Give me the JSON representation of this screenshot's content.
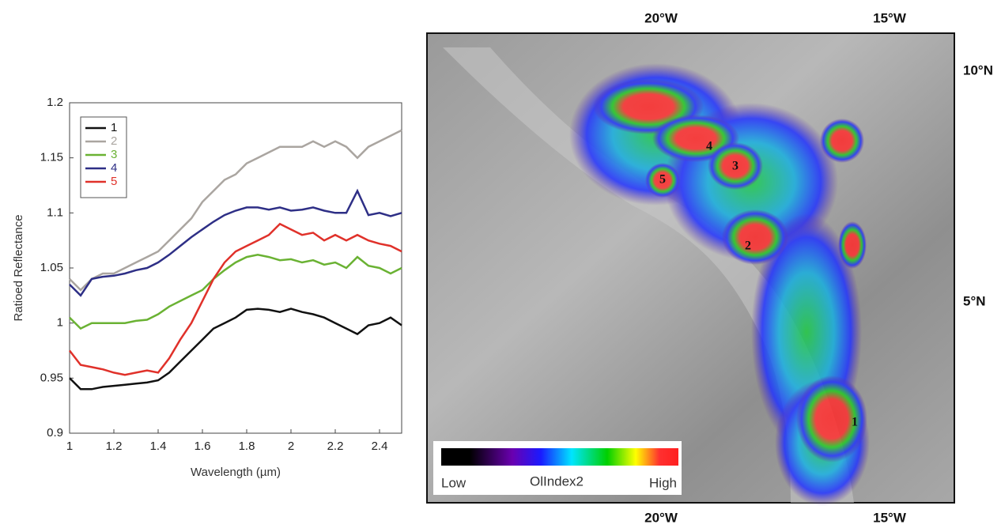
{
  "chart_data": {
    "type": "line",
    "xlabel": "Wavelength (µm)",
    "ylabel": "Ratioed Reflectance",
    "x": [
      1.0,
      1.05,
      1.1,
      1.15,
      1.2,
      1.25,
      1.3,
      1.35,
      1.4,
      1.45,
      1.5,
      1.55,
      1.6,
      1.65,
      1.7,
      1.75,
      1.8,
      1.85,
      1.9,
      1.95,
      2.0,
      2.05,
      2.1,
      2.15,
      2.2,
      2.25,
      2.3,
      2.35,
      2.4,
      2.45,
      2.5
    ],
    "xlim": [
      1,
      2.5
    ],
    "xticks": [
      1,
      1.2,
      1.4,
      1.6,
      1.8,
      2,
      2.2,
      2.4
    ],
    "ylim": [
      0.9,
      1.2
    ],
    "yticks": [
      0.9,
      0.95,
      1,
      1.05,
      1.1,
      1.15,
      1.2
    ],
    "legend": "upper left",
    "series": [
      {
        "name": "1",
        "color": "#111111",
        "values": [
          0.95,
          0.94,
          0.94,
          0.942,
          0.943,
          0.944,
          0.945,
          0.946,
          0.948,
          0.955,
          0.965,
          0.975,
          0.985,
          0.995,
          1.0,
          1.005,
          1.012,
          1.013,
          1.012,
          1.01,
          1.013,
          1.01,
          1.008,
          1.005,
          1.0,
          0.995,
          0.99,
          0.998,
          1.0,
          1.005,
          0.998
        ]
      },
      {
        "name": "2",
        "color": "#aaa5a0",
        "values": [
          1.04,
          1.03,
          1.04,
          1.045,
          1.045,
          1.05,
          1.055,
          1.06,
          1.065,
          1.075,
          1.085,
          1.095,
          1.11,
          1.12,
          1.13,
          1.135,
          1.145,
          1.15,
          1.155,
          1.16,
          1.16,
          1.16,
          1.165,
          1.16,
          1.165,
          1.16,
          1.15,
          1.16,
          1.165,
          1.17,
          1.175
        ]
      },
      {
        "name": "3",
        "color": "#6ab233",
        "values": [
          1.005,
          0.995,
          1.0,
          1.0,
          1.0,
          1.0,
          1.002,
          1.003,
          1.008,
          1.015,
          1.02,
          1.025,
          1.03,
          1.04,
          1.048,
          1.055,
          1.06,
          1.062,
          1.06,
          1.057,
          1.058,
          1.055,
          1.057,
          1.053,
          1.055,
          1.05,
          1.06,
          1.052,
          1.05,
          1.045,
          1.05
        ]
      },
      {
        "name": "4",
        "color": "#2e2f86",
        "values": [
          1.035,
          1.025,
          1.04,
          1.042,
          1.043,
          1.045,
          1.048,
          1.05,
          1.055,
          1.062,
          1.07,
          1.078,
          1.085,
          1.092,
          1.098,
          1.102,
          1.105,
          1.105,
          1.103,
          1.105,
          1.102,
          1.103,
          1.105,
          1.102,
          1.1,
          1.1,
          1.12,
          1.098,
          1.1,
          1.097,
          1.1
        ]
      },
      {
        "name": "5",
        "color": "#e0312a",
        "values": [
          0.975,
          0.962,
          0.96,
          0.958,
          0.955,
          0.953,
          0.955,
          0.957,
          0.955,
          0.968,
          0.985,
          1.0,
          1.02,
          1.04,
          1.055,
          1.065,
          1.07,
          1.075,
          1.08,
          1.09,
          1.085,
          1.08,
          1.082,
          1.075,
          1.08,
          1.075,
          1.08,
          1.075,
          1.072,
          1.07,
          1.065
        ]
      }
    ]
  },
  "map": {
    "lon_labels": [
      "20°W",
      "15°W"
    ],
    "lat_labels": [
      "10°N",
      "5°N"
    ],
    "sites": [
      "4",
      "3",
      "5",
      "2",
      "1"
    ],
    "colorbar": {
      "low": "Low",
      "title": "OlIndex2",
      "high": "High"
    }
  }
}
